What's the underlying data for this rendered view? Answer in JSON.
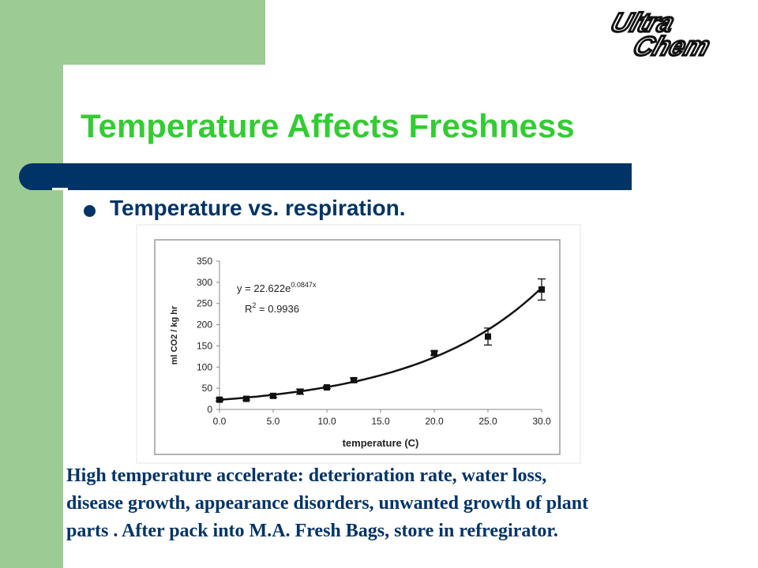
{
  "slide": {
    "title": "Temperature Affects Freshness",
    "bullet": "Temperature vs. respiration.",
    "logo": {
      "line1": "Ultra",
      "line2": "Chem"
    },
    "caption_lines": [
      "High temperature accelerate: deterioration rate, water loss,",
      "disease growth, appearance disorders, unwanted growth of plant",
      "parts . After pack into M.A. Fresh Bags, store in refregirator."
    ]
  },
  "colors": {
    "sidebar": "#9ccc94",
    "title": "#33cc33",
    "navy": "#003366"
  },
  "chart_data": {
    "type": "scatter",
    "xlabel": "temperature (C)",
    "ylabel": "ml CO2 / kg hr",
    "xlim": [
      0,
      30
    ],
    "ylim": [
      0,
      350
    ],
    "xticks": [
      "0.0",
      "5.0",
      "10.0",
      "15.0",
      "20.0",
      "25.0",
      "30.0"
    ],
    "yticks": [
      "0",
      "50",
      "100",
      "150",
      "200",
      "250",
      "300",
      "350"
    ],
    "grid": false,
    "points": [
      {
        "x": 0.0,
        "y": 23,
        "err": 3
      },
      {
        "x": 2.5,
        "y": 25,
        "err": 3
      },
      {
        "x": 5.0,
        "y": 32,
        "err": 4
      },
      {
        "x": 7.5,
        "y": 42,
        "err": 6
      },
      {
        "x": 10.0,
        "y": 52,
        "err": 3
      },
      {
        "x": 12.5,
        "y": 69,
        "err": 5
      },
      {
        "x": 20.0,
        "y": 133,
        "err": 5
      },
      {
        "x": 25.0,
        "y": 172,
        "err": 20
      },
      {
        "x": 30.0,
        "y": 283,
        "err": 25
      }
    ],
    "fit": {
      "a": 22.622,
      "b": 0.0847
    },
    "equation": {
      "prefix": "y = 22.622e",
      "exponent": "0.0847x"
    },
    "r2": {
      "prefix": "R",
      "sup": "2",
      "suffix": " = 0.9936"
    }
  }
}
